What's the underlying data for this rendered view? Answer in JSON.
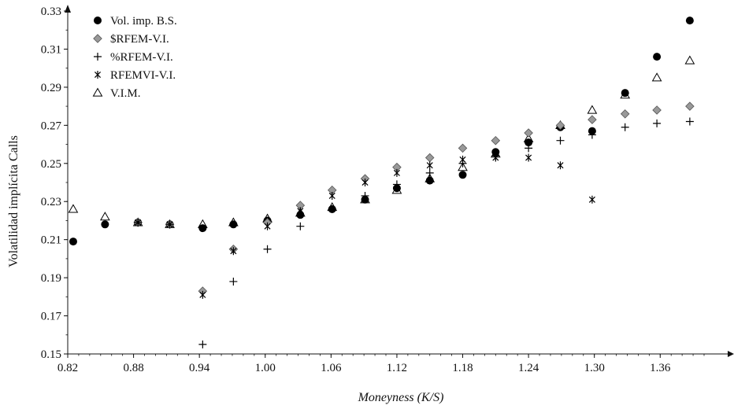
{
  "chart_data": {
    "type": "scatter",
    "title": "",
    "xlabel": "Moneyness (K/S)",
    "ylabel": "Volatilidad implícita Calls",
    "xlim": [
      0.82,
      1.4
    ],
    "ylim": [
      0.15,
      0.33
    ],
    "x_ticks": [
      "0.82",
      "0.88",
      "0.94",
      "1.00",
      "1.06",
      "1.12",
      "1.18",
      "1.24",
      "1.30",
      "1.36"
    ],
    "y_ticks": [
      "0.15",
      "0.17",
      "0.19",
      "0.21",
      "0.23",
      "0.25",
      "0.27",
      "0.29",
      "0.31",
      "0.33"
    ],
    "grid": false,
    "legend_position": "top-left",
    "series": [
      {
        "name": "Vol. imp. B.S.",
        "marker": "filled-circle",
        "color": "#000000",
        "points": [
          [
            0.825,
            0.209
          ],
          [
            0.854,
            0.218
          ],
          [
            0.884,
            0.219
          ],
          [
            0.913,
            0.218
          ],
          [
            0.943,
            0.216
          ],
          [
            0.971,
            0.218
          ],
          [
            1.002,
            0.22
          ],
          [
            1.032,
            0.223
          ],
          [
            1.061,
            0.226
          ],
          [
            1.091,
            0.231
          ],
          [
            1.12,
            0.237
          ],
          [
            1.15,
            0.241
          ],
          [
            1.18,
            0.244
          ],
          [
            1.21,
            0.256
          ],
          [
            1.24,
            0.261
          ],
          [
            1.269,
            0.269
          ],
          [
            1.298,
            0.267
          ],
          [
            1.328,
            0.287
          ],
          [
            1.357,
            0.306
          ],
          [
            1.387,
            0.325
          ]
        ]
      },
      {
        "name": "$RFEM-V.I.",
        "marker": "diamond",
        "color": "#999999",
        "points": [
          [
            0.884,
            0.219
          ],
          [
            0.913,
            0.218
          ],
          [
            0.943,
            0.183
          ],
          [
            0.971,
            0.205
          ],
          [
            1.002,
            0.219
          ],
          [
            1.032,
            0.228
          ],
          [
            1.061,
            0.236
          ],
          [
            1.091,
            0.242
          ],
          [
            1.12,
            0.248
          ],
          [
            1.15,
            0.253
          ],
          [
            1.18,
            0.258
          ],
          [
            1.21,
            0.262
          ],
          [
            1.24,
            0.266
          ],
          [
            1.269,
            0.27
          ],
          [
            1.298,
            0.273
          ],
          [
            1.328,
            0.276
          ],
          [
            1.357,
            0.278
          ],
          [
            1.387,
            0.28
          ]
        ]
      },
      {
        "name": "%RFEM-V.I.",
        "marker": "plus",
        "color": "#000000",
        "points": [
          [
            0.884,
            0.219
          ],
          [
            0.913,
            0.218
          ],
          [
            0.943,
            0.155
          ],
          [
            0.971,
            0.188
          ],
          [
            1.002,
            0.205
          ],
          [
            1.032,
            0.217
          ],
          [
            1.061,
            0.226
          ],
          [
            1.091,
            0.233
          ],
          [
            1.12,
            0.239
          ],
          [
            1.15,
            0.245
          ],
          [
            1.18,
            0.25
          ],
          [
            1.21,
            0.254
          ],
          [
            1.24,
            0.258
          ],
          [
            1.269,
            0.262
          ],
          [
            1.298,
            0.265
          ],
          [
            1.328,
            0.269
          ],
          [
            1.357,
            0.271
          ],
          [
            1.387,
            0.272
          ]
        ]
      },
      {
        "name": "RFEMVI-V.I.",
        "marker": "asterisk",
        "color": "#000000",
        "points": [
          [
            0.884,
            0.219
          ],
          [
            0.913,
            0.218
          ],
          [
            0.943,
            0.181
          ],
          [
            0.971,
            0.204
          ],
          [
            1.002,
            0.217
          ],
          [
            1.032,
            0.225
          ],
          [
            1.061,
            0.233
          ],
          [
            1.091,
            0.24
          ],
          [
            1.12,
            0.245
          ],
          [
            1.15,
            0.249
          ],
          [
            1.18,
            0.252
          ],
          [
            1.21,
            0.253
          ],
          [
            1.24,
            0.253
          ],
          [
            1.269,
            0.249
          ],
          [
            1.298,
            0.231
          ]
        ]
      },
      {
        "name": "V.I.M.",
        "marker": "open-triangle",
        "color": "#000000",
        "points": [
          [
            0.825,
            0.226
          ],
          [
            0.854,
            0.222
          ],
          [
            0.884,
            0.219
          ],
          [
            0.913,
            0.218
          ],
          [
            0.943,
            0.218
          ],
          [
            0.971,
            0.219
          ],
          [
            1.002,
            0.221
          ],
          [
            1.032,
            0.224
          ],
          [
            1.061,
            0.227
          ],
          [
            1.091,
            0.231
          ],
          [
            1.12,
            0.236
          ],
          [
            1.15,
            0.242
          ],
          [
            1.18,
            0.248
          ],
          [
            1.21,
            0.255
          ],
          [
            1.24,
            0.263
          ],
          [
            1.269,
            0.27
          ],
          [
            1.298,
            0.278
          ],
          [
            1.328,
            0.286
          ],
          [
            1.357,
            0.295
          ],
          [
            1.387,
            0.304
          ]
        ]
      }
    ]
  }
}
